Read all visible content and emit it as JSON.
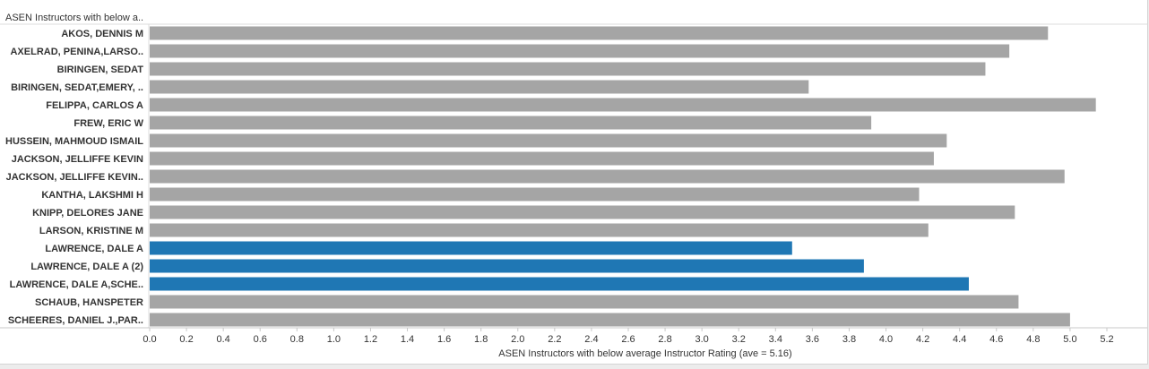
{
  "chart_data": {
    "type": "bar",
    "orientation": "horizontal",
    "header": "ASEN Instructors with below a..",
    "xlabel": "ASEN Instructors with below average Instructor Rating (ave = 5.16)",
    "xlim": [
      0,
      5.2
    ],
    "xticks": [
      "0.0",
      "0.2",
      "0.4",
      "0.6",
      "0.8",
      "1.0",
      "1.2",
      "1.4",
      "1.6",
      "1.8",
      "2.0",
      "2.2",
      "2.4",
      "2.6",
      "2.8",
      "3.0",
      "3.2",
      "3.4",
      "3.6",
      "3.8",
      "4.0",
      "4.2",
      "4.4",
      "4.6",
      "4.8",
      "5.0",
      "5.2"
    ],
    "grid": false,
    "colors": {
      "default": "#a5a5a5",
      "highlight": "#1f77b4"
    },
    "categories": [
      "AKOS, DENNIS M",
      "AXELRAD, PENINA,LARSO..",
      "BIRINGEN, SEDAT",
      "BIRINGEN, SEDAT,EMERY, ..",
      "FELIPPA, CARLOS A",
      "FREW, ERIC W",
      "HUSSEIN, MAHMOUD ISMAIL",
      "JACKSON, JELLIFFE KEVIN",
      "JACKSON, JELLIFFE KEVIN..",
      "KANTHA, LAKSHMI H",
      "KNIPP, DELORES JANE",
      "LARSON, KRISTINE M",
      "LAWRENCE, DALE A",
      "LAWRENCE, DALE A (2)",
      "LAWRENCE, DALE A,SCHE..",
      "SCHAUB, HANSPETER",
      "SCHEERES, DANIEL J.,PAR.."
    ],
    "values": [
      4.88,
      4.67,
      4.54,
      3.58,
      5.14,
      3.92,
      4.33,
      4.26,
      4.97,
      4.18,
      4.7,
      4.23,
      3.49,
      3.88,
      4.45,
      4.72,
      5.0
    ],
    "highlighted": [
      false,
      false,
      false,
      false,
      false,
      false,
      false,
      false,
      false,
      false,
      false,
      false,
      true,
      true,
      true,
      false,
      false
    ]
  }
}
